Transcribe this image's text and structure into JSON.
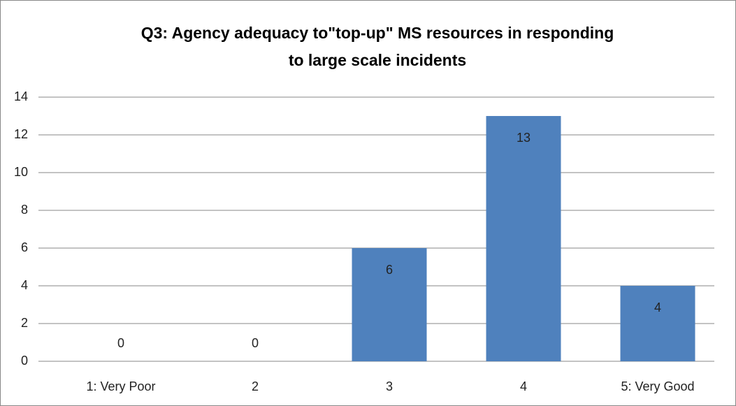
{
  "chart_data": {
    "type": "bar",
    "title": [
      "Q3: Agency adequacy to\"top-up\" MS resources in responding",
      "to large scale incidents"
    ],
    "categories": [
      "1: Very Poor",
      "2",
      "3",
      "4",
      "5: Very Good"
    ],
    "values": [
      0,
      0,
      6,
      13,
      4
    ],
    "color": "#4f81bd",
    "ylim": [
      0,
      14
    ],
    "yticks": [
      0,
      2,
      4,
      6,
      8,
      10,
      12,
      14
    ],
    "grid": true
  }
}
